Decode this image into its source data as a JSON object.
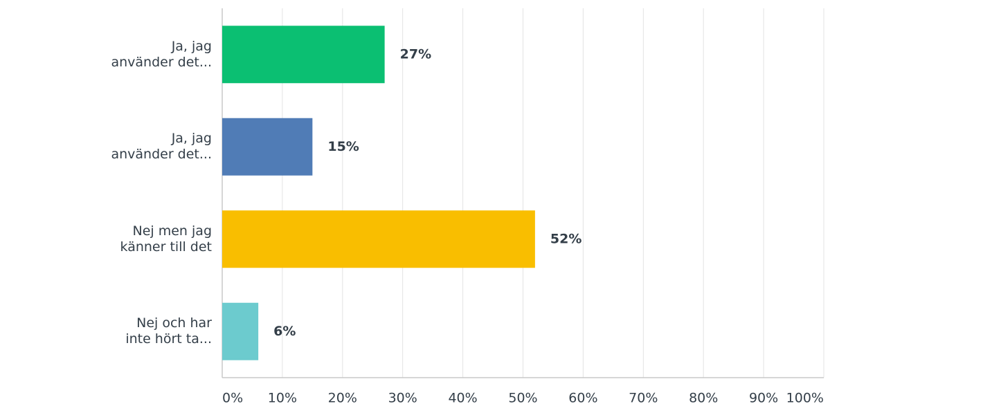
{
  "chart_data": {
    "type": "bar",
    "orientation": "horizontal",
    "categories": [
      "Ja, jag\nanvänder det...",
      "Ja, jag\nanvänder det...",
      "Nej men jag\nkänner till det",
      "Nej och har\ninte hört ta..."
    ],
    "values": [
      27,
      15,
      52,
      6
    ],
    "value_labels": [
      "27%",
      "15%",
      "52%",
      "6%"
    ],
    "colors": [
      "#0bbf72",
      "#507cb6",
      "#f9be00",
      "#6ccbce"
    ],
    "xlim": [
      0,
      100
    ],
    "xticks": [
      {
        "value": 0,
        "label": "0%"
      },
      {
        "value": 10,
        "label": "10%"
      },
      {
        "value": 20,
        "label": "20%"
      },
      {
        "value": 30,
        "label": "30%"
      },
      {
        "value": 40,
        "label": "40%"
      },
      {
        "value": 50,
        "label": "50%"
      },
      {
        "value": 60,
        "label": "60%"
      },
      {
        "value": 70,
        "label": "70%"
      },
      {
        "value": 80,
        "label": "80%"
      },
      {
        "value": 90,
        "label": "90%"
      },
      {
        "value": 100,
        "label": "100%"
      }
    ],
    "grid": true
  }
}
